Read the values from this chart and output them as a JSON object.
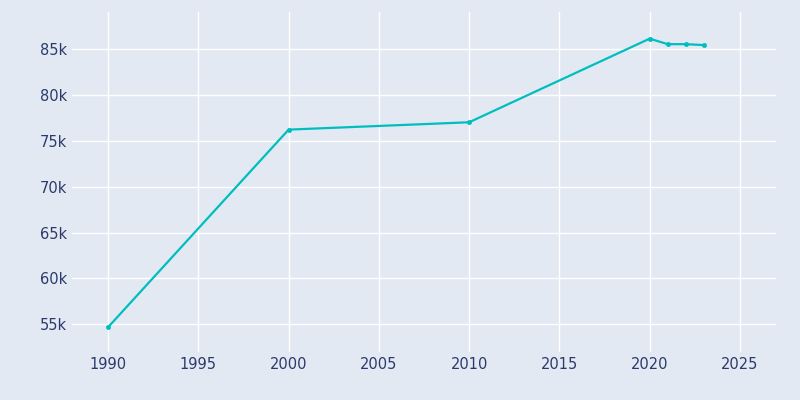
{
  "years": [
    1990,
    2000,
    2010,
    2020,
    2021,
    2022,
    2023
  ],
  "population": [
    54700,
    76200,
    77000,
    86100,
    85500,
    85500,
    85400
  ],
  "line_color": "#00BEBE",
  "marker_color": "#00BEBE",
  "background_color": "#e3e9f3",
  "grid_color": "#ffffff",
  "text_color": "#2b3a6b",
  "xlim": [
    1988,
    2027
  ],
  "ylim": [
    52000,
    89000
  ],
  "xticks": [
    1990,
    1995,
    2000,
    2005,
    2010,
    2015,
    2020,
    2025
  ],
  "yticks": [
    55000,
    60000,
    65000,
    70000,
    75000,
    80000,
    85000
  ]
}
